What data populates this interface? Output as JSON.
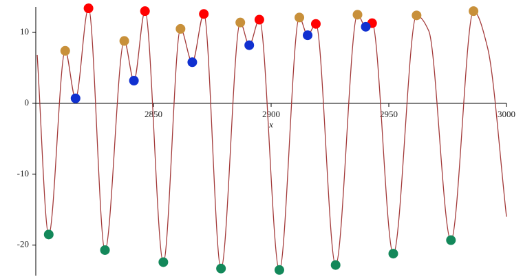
{
  "chart_data": {
    "type": "line",
    "x_label": "x",
    "xlim": [
      2800,
      3000
    ],
    "ylim": [
      -24.3,
      13.6
    ],
    "xticks": [
      2850,
      2900,
      2950,
      3000
    ],
    "yticks": [
      10,
      0,
      -10,
      -20
    ],
    "curve": {
      "color": "#a33a3a",
      "x": [
        2800.6,
        2805.5,
        2812.5,
        2816.9,
        2822.4,
        2829.4,
        2837.6,
        2841.7,
        2846.4,
        2854.2,
        2861.5,
        2866.5,
        2871.4,
        2878.7,
        2886.9,
        2890.7,
        2895,
        2903.5,
        2912,
        2915.5,
        2919,
        2927.4,
        2936.7,
        2940.2,
        2942.9,
        2951.9,
        2961.8,
        2967,
        2976.4,
        2986,
        2992,
        3000
      ],
      "y": [
        6.8,
        -18.5,
        7.4,
        0.7,
        13.4,
        -20.7,
        8.8,
        3.2,
        13.0,
        -22.4,
        10.5,
        5.8,
        12.6,
        -23.3,
        11.4,
        8.2,
        11.8,
        -23.5,
        12.1,
        9.6,
        11.2,
        -22.8,
        12.5,
        10.8,
        11.3,
        -21.2,
        12.4,
        10.2,
        -19.3,
        13.0,
        7.8,
        -16
      ]
    },
    "series": [
      {
        "color": "#c8903a",
        "x": [
          2812.5,
          2837.6,
          2861.5,
          2886.9,
          2912,
          2936.7,
          2961.8,
          2986
        ],
        "y": [
          7.4,
          8.8,
          10.5,
          11.4,
          12.1,
          12.5,
          12.4,
          13.0
        ]
      },
      {
        "color": "#ff0000",
        "x": [
          2822.4,
          2846.4,
          2871.4,
          2895,
          2919,
          2942.9
        ],
        "y": [
          13.4,
          13.0,
          12.6,
          11.8,
          11.2,
          11.3
        ]
      },
      {
        "color": "#1030d0",
        "x": [
          2816.9,
          2841.7,
          2866.5,
          2890.7,
          2915.5,
          2940.2
        ],
        "y": [
          0.7,
          3.2,
          5.8,
          8.2,
          9.6,
          10.8
        ]
      },
      {
        "color": "#13885a",
        "x": [
          2805.5,
          2829.4,
          2854.2,
          2878.7,
          2903.5,
          2927.4,
          2951.9,
          2976.4
        ],
        "y": [
          -18.5,
          -20.7,
          -22.4,
          -23.3,
          -23.5,
          -22.8,
          -21.2,
          -19.3
        ]
      }
    ]
  }
}
